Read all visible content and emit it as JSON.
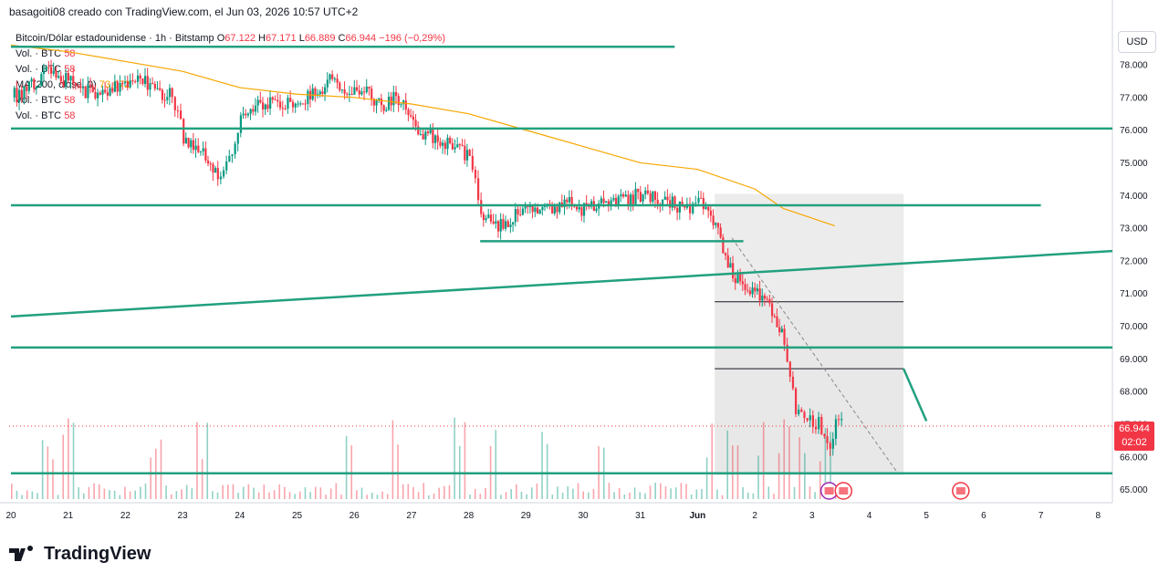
{
  "header": {
    "caption": "basagoiti08 creado con TradingView.com, el Jun 03, 2026 10:57 UTC+2"
  },
  "legend": {
    "symbol": "Bitcoin/Dólar estadounidense · 1h · Bitstamp",
    "ohlc": {
      "open_label": "O",
      "open": "67.122",
      "high_label": "H",
      "high": "67.171",
      "low_label": "L",
      "low": "66.889",
      "close_label": "C",
      "close": "66.944",
      "change": "−196 (−0,29%)"
    },
    "rows": [
      {
        "label": "Vol. · BTC",
        "value": "58"
      },
      {
        "label": "Vol. · BTC",
        "value": "58"
      },
      {
        "label": "MA (200, close, 0)",
        "value": "73.072"
      },
      {
        "label": "Vol. · BTC",
        "value": "58"
      },
      {
        "label": "Vol. · BTC",
        "value": "58"
      }
    ]
  },
  "currency": "USD",
  "last_price": {
    "value": "66.944",
    "countdown": "02:02"
  },
  "brand": "TradingView",
  "chart_data": {
    "type": "candlestick",
    "title": "",
    "x_tick_labels": [
      "20",
      "21",
      "22",
      "23",
      "24",
      "25",
      "26",
      "27",
      "28",
      "29",
      "30",
      "31",
      "Jun",
      "2",
      "3",
      "4",
      "5",
      "6",
      "7",
      "8"
    ],
    "y_tick_labels": [
      "65.000",
      "66.000",
      "67.000",
      "68.000",
      "69.000",
      "70.000",
      "71.000",
      "72.000",
      "73.000",
      "74.000",
      "75.000",
      "76.000",
      "77.000",
      "78.000"
    ],
    "ylim": [
      64.6,
      79.2
    ],
    "close_path": [
      [
        0,
        77.0
      ],
      [
        0.3,
        77.3
      ],
      [
        0.6,
        77.8
      ],
      [
        0.9,
        77.6
      ],
      [
        1.2,
        77.3
      ],
      [
        1.5,
        77.0
      ],
      [
        1.8,
        77.4
      ],
      [
        2.2,
        77.5
      ],
      [
        2.5,
        77.3
      ],
      [
        2.8,
        77.0
      ],
      [
        3.0,
        75.8
      ],
      [
        3.3,
        75.4
      ],
      [
        3.6,
        74.6
      ],
      [
        3.8,
        75.0
      ],
      [
        4.0,
        76.3
      ],
      [
        4.3,
        76.8
      ],
      [
        4.6,
        76.9
      ],
      [
        5.0,
        76.7
      ],
      [
        5.3,
        77.2
      ],
      [
        5.6,
        77.5
      ],
      [
        5.9,
        77.3
      ],
      [
        6.2,
        77.1
      ],
      [
        6.5,
        76.8
      ],
      [
        6.8,
        77.0
      ],
      [
        7.1,
        76.0
      ],
      [
        7.4,
        75.8
      ],
      [
        7.7,
        75.5
      ],
      [
        8.0,
        75.2
      ],
      [
        8.2,
        73.5
      ],
      [
        8.5,
        73.0
      ],
      [
        8.8,
        73.4
      ],
      [
        9.1,
        73.7
      ],
      [
        9.4,
        73.5
      ],
      [
        9.7,
        73.8
      ],
      [
        10.0,
        73.6
      ],
      [
        10.3,
        73.7
      ],
      [
        10.6,
        73.8
      ],
      [
        10.9,
        74.0
      ],
      [
        11.2,
        73.9
      ],
      [
        11.5,
        73.8
      ],
      [
        11.8,
        73.6
      ],
      [
        12.0,
        73.8
      ],
      [
        12.3,
        73.0
      ],
      [
        12.6,
        71.5
      ],
      [
        12.9,
        71.2
      ],
      [
        13.2,
        70.8
      ],
      [
        13.5,
        69.5
      ],
      [
        13.7,
        67.5
      ],
      [
        13.9,
        67.3
      ],
      [
        14.1,
        67.0
      ],
      [
        14.3,
        66.5
      ],
      [
        14.4,
        67.1
      ],
      [
        14.5,
        66.944
      ]
    ],
    "volume_spikes": [
      0.6,
      1.0,
      2.5,
      3.3,
      5.9,
      6.7,
      7.8,
      8.4,
      9.3,
      10.3,
      12.2,
      12.6,
      13.1,
      13.5,
      13.8,
      14.2
    ],
    "series": [
      {
        "name": "MA (200, close, 0)",
        "color": "#f7a600",
        "points": [
          [
            0,
            78.6
          ],
          [
            1,
            78.4
          ],
          [
            2,
            78.1
          ],
          [
            3,
            77.8
          ],
          [
            4,
            77.3
          ],
          [
            5,
            77.1
          ],
          [
            6,
            77.0
          ],
          [
            7,
            76.8
          ],
          [
            8,
            76.5
          ],
          [
            9,
            76.0
          ],
          [
            10,
            75.5
          ],
          [
            11,
            75.0
          ],
          [
            12,
            74.8
          ],
          [
            13,
            74.2
          ],
          [
            13.5,
            73.6
          ],
          [
            14.4,
            73.072
          ]
        ]
      }
    ],
    "drawings": [
      {
        "kind": "hline",
        "price": 78.55,
        "x_from": 0,
        "x_to": 11.6
      },
      {
        "kind": "hline",
        "price": 76.05,
        "x_from": 0,
        "x_to": 19.6
      },
      {
        "kind": "hline",
        "price": 73.7,
        "x_from": 0,
        "x_to": 18.0
      },
      {
        "kind": "hline",
        "price": 72.6,
        "x_from": 8.2,
        "x_to": 12.8
      },
      {
        "kind": "trend",
        "from": [
          0,
          70.3
        ],
        "to": [
          19.6,
          72.3
        ]
      },
      {
        "kind": "hline",
        "price": 69.35,
        "x_from": 0,
        "x_to": 19.6
      },
      {
        "kind": "hline",
        "price": 65.5,
        "x_from": 0,
        "x_to": 19.6
      },
      {
        "kind": "trend",
        "from": [
          15.6,
          68.7
        ],
        "to": [
          16.0,
          67.1
        ]
      }
    ],
    "colors": {
      "up": "#089981",
      "down": "#f23645",
      "lines": "#22a07f",
      "ma": "#f7a600"
    }
  }
}
